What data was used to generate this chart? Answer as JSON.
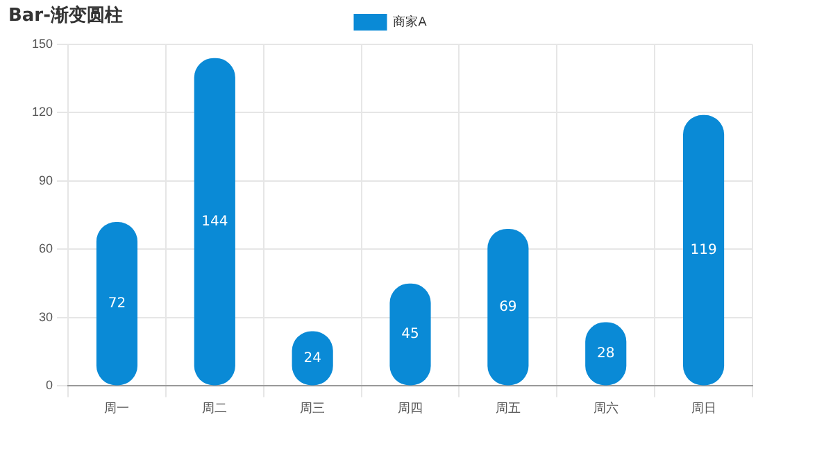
{
  "chart_data": {
    "type": "bar",
    "title": "Bar-渐变圆柱",
    "categories": [
      "周一",
      "周二",
      "周三",
      "周四",
      "周五",
      "周六",
      "周日"
    ],
    "series": [
      {
        "name": "商家A",
        "color": "#0a8ad6",
        "values": [
          72,
          144,
          24,
          45,
          69,
          28,
          119
        ]
      }
    ],
    "ylim": [
      0,
      150
    ],
    "yticks": [
      0,
      30,
      60,
      90,
      120,
      150
    ],
    "grid": true,
    "legend": "top",
    "data_labels": true
  }
}
